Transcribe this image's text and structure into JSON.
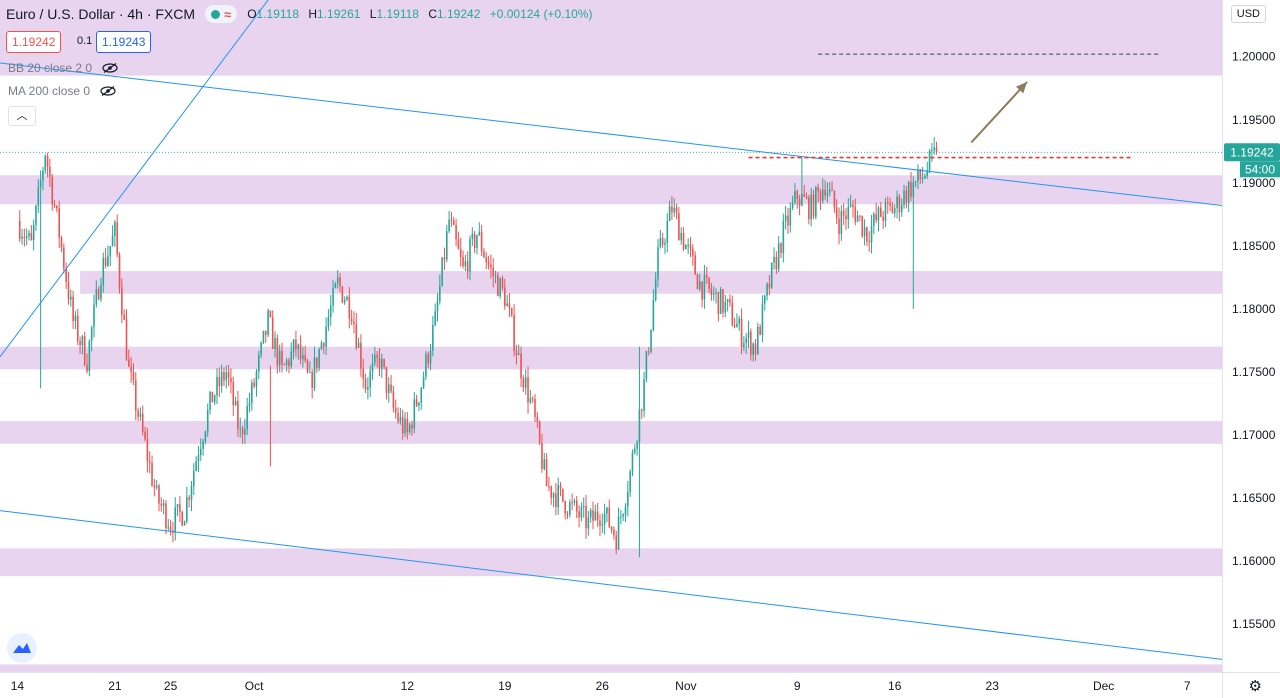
{
  "header": {
    "title": "Euro / U.S. Dollar · 4h · FXCM",
    "ohlc": {
      "o_label": "O",
      "o": "1.19118",
      "h_label": "H",
      "h": "1.19261",
      "l_label": "L",
      "l": "1.19118",
      "c_label": "C",
      "c": "1.19242",
      "change": "+0.00124 (+0.10%)"
    }
  },
  "trade": {
    "bid": "1.19242",
    "spread": "0.1",
    "ask": "1.19243"
  },
  "indicators": [
    {
      "label": "BB 20 close 2 0"
    },
    {
      "label": "MA 200 close 0"
    }
  ],
  "currency": "USD",
  "colors": {
    "up": "#26a69a",
    "down": "#ef5350",
    "zone": "#e8d2ef",
    "trendline": "#2196f3",
    "target_arrow": "#8b7d5c"
  },
  "chart_data": {
    "type": "candlestick",
    "timeframe": "4h",
    "ylim": [
      1.1512,
      1.2045
    ],
    "y_ticks": [
      "1.20000",
      "1.19500",
      "1.19000",
      "1.18500",
      "1.18000",
      "1.17500",
      "1.17000",
      "1.16500",
      "1.16000",
      "1.15500"
    ],
    "x_ticks": [
      {
        "label": "14",
        "day": 0
      },
      {
        "label": "21",
        "day": 7
      },
      {
        "label": "25",
        "day": 11
      },
      {
        "label": "Oct",
        "day": 17
      },
      {
        "label": "12",
        "day": 28
      },
      {
        "label": "19",
        "day": 35
      },
      {
        "label": "26",
        "day": 42
      },
      {
        "label": "Nov",
        "day": 48
      },
      {
        "label": "9",
        "day": 56
      },
      {
        "label": "16",
        "day": 63
      },
      {
        "label": "23",
        "day": 70
      },
      {
        "label": "Dec",
        "day": 78
      },
      {
        "label": "7",
        "day": 84
      }
    ],
    "x_range_days": [
      -1.25,
      86.5
    ],
    "last_price": "1.19242",
    "countdown": "54:00",
    "anchors": [
      [
        0,
        1.187
      ],
      [
        1,
        1.185
      ],
      [
        2,
        1.1925
      ],
      [
        3,
        1.186
      ],
      [
        4,
        1.179
      ],
      [
        5,
        1.176
      ],
      [
        6,
        1.183
      ],
      [
        7,
        1.186
      ],
      [
        8,
        1.175
      ],
      [
        9,
        1.17
      ],
      [
        10,
        1.165
      ],
      [
        11,
        1.163
      ],
      [
        12,
        1.164
      ],
      [
        13,
        1.169
      ],
      [
        14,
        1.173
      ],
      [
        15,
        1.175
      ],
      [
        16,
        1.17
      ],
      [
        17,
        1.174
      ],
      [
        18,
        1.179
      ],
      [
        19,
        1.175
      ],
      [
        20,
        1.177
      ],
      [
        21,
        1.174
      ],
      [
        22,
        1.178
      ],
      [
        23,
        1.182
      ],
      [
        24,
        1.18
      ],
      [
        25,
        1.174
      ],
      [
        26,
        1.176
      ],
      [
        27,
        1.172
      ],
      [
        28,
        1.17
      ],
      [
        29,
        1.174
      ],
      [
        30,
        1.179
      ],
      [
        31,
        1.187
      ],
      [
        32,
        1.183
      ],
      [
        33,
        1.186
      ],
      [
        34,
        1.183
      ],
      [
        35,
        1.181
      ],
      [
        36,
        1.176
      ],
      [
        37,
        1.172
      ],
      [
        38,
        1.166
      ],
      [
        39,
        1.165
      ],
      [
        40,
        1.164
      ],
      [
        41,
        1.163
      ],
      [
        42,
        1.164
      ],
      [
        43,
        1.162
      ],
      [
        44,
        1.167
      ],
      [
        45,
        1.174
      ],
      [
        46,
        1.184
      ],
      [
        47,
        1.188
      ],
      [
        48,
        1.185
      ],
      [
        49,
        1.182
      ],
      [
        50,
        1.181
      ],
      [
        51,
        1.18
      ],
      [
        52,
        1.178
      ],
      [
        53,
        1.177
      ],
      [
        54,
        1.182
      ],
      [
        55,
        1.186
      ],
      [
        56,
        1.189
      ],
      [
        57,
        1.188
      ],
      [
        58,
        1.19
      ],
      [
        59,
        1.187
      ],
      [
        60,
        1.188
      ],
      [
        61,
        1.186
      ],
      [
        62,
        1.1875
      ],
      [
        63,
        1.188
      ],
      [
        64,
        1.1895
      ],
      [
        65,
        1.1905
      ],
      [
        66,
        1.1924
      ]
    ],
    "zones": [
      [
        1.1985,
        2.015
      ],
      [
        1.1883,
        1.1906
      ],
      [
        1.1812,
        1.183
      ],
      [
        1.1752,
        1.177
      ],
      [
        1.1693,
        1.1711
      ],
      [
        1.1588,
        1.161
      ],
      [
        1.1512,
        1.1518
      ]
    ],
    "zone_starts_day": [
      -1.25,
      -1.25,
      4.5,
      -1.25,
      -1.25,
      -1.25,
      -1.25
    ],
    "trendlines": [
      {
        "p1": [
          -1.25,
          1.1995
        ],
        "p2": [
          86.5,
          1.1882
        ]
      },
      {
        "p1": [
          -1.25,
          1.164
        ],
        "p2": [
          86.5,
          1.1522
        ]
      },
      {
        "p1": [
          -1.25,
          1.1762
        ],
        "p2": [
          18.0,
          1.2045
        ]
      }
    ],
    "resistance_line": {
      "y": 1.192,
      "from_day": 52.5,
      "to_day": 80.0,
      "color": "#e53935"
    },
    "target_line": {
      "y": 1.2002,
      "from_day": 57.5,
      "to_day": 82.0,
      "color": "#787b86"
    },
    "target_arrow": {
      "from": [
        68.5,
        1.1932
      ],
      "to": [
        72.5,
        1.198
      ]
    }
  }
}
